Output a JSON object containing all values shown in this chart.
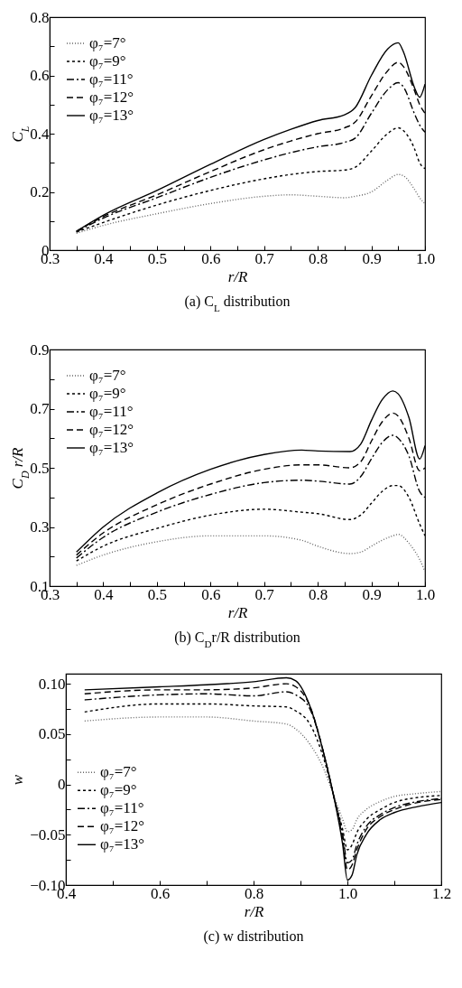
{
  "chart_data": [
    {
      "type": "line",
      "title": "(a) C$_{L}$ distribution",
      "xlabel": "r/R",
      "ylabel": "C$_{L}$",
      "legend": "top left",
      "xlim": [
        0.3,
        1.0
      ],
      "ylim": [
        0,
        0.8
      ],
      "xticks": [
        0.3,
        {
          "value": 0.35,
          "label": null
        },
        0.4,
        {
          "value": 0.45,
          "label": null
        },
        0.5,
        {
          "value": 0.55,
          "label": null
        },
        0.6,
        {
          "value": 0.65,
          "label": null
        },
        0.7,
        {
          "value": 0.75,
          "label": null
        },
        0.8,
        {
          "value": 0.85,
          "label": null
        },
        0.9,
        {
          "value": 0.95,
          "label": null
        },
        {
          "value": 1.0,
          "label": "1.0"
        }
      ],
      "yticks": [
        0,
        {
          "value": 0.1,
          "label": null
        },
        0.2,
        {
          "value": 0.3,
          "label": null
        },
        0.4,
        {
          "value": 0.5,
          "label": null
        },
        0.6,
        {
          "value": 0.7,
          "label": null
        },
        0.8
      ],
      "x": [
        0.35,
        0.4,
        0.5,
        0.6,
        0.7,
        0.75,
        0.8,
        0.85,
        0.87,
        0.9,
        0.93,
        0.95,
        0.96,
        0.98,
        0.99,
        1.0
      ],
      "series": [
        {
          "name": "φ₇=7°",
          "color": "#666666",
          "line_style": "dotted",
          "values": [
            0.058,
            0.085,
            0.125,
            0.16,
            0.185,
            0.19,
            0.185,
            0.18,
            0.185,
            0.2,
            0.24,
            0.26,
            0.255,
            0.21,
            0.18,
            0.16
          ]
        },
        {
          "name": "φ₇=9°",
          "color": "#000000",
          "line_style": "short-dashed",
          "values": [
            0.062,
            0.095,
            0.155,
            0.205,
            0.245,
            0.26,
            0.27,
            0.275,
            0.285,
            0.34,
            0.4,
            0.42,
            0.41,
            0.35,
            0.3,
            0.28
          ]
        },
        {
          "name": "φ₇=11°",
          "color": "#000000",
          "line_style": "dashdot",
          "values": [
            0.063,
            0.11,
            0.18,
            0.25,
            0.31,
            0.335,
            0.355,
            0.37,
            0.385,
            0.47,
            0.55,
            0.575,
            0.56,
            0.47,
            0.43,
            0.405
          ]
        },
        {
          "name": "φ₇=12°",
          "color": "#000000",
          "line_style": "dashed",
          "values": [
            0.065,
            0.115,
            0.19,
            0.27,
            0.345,
            0.375,
            0.4,
            0.42,
            0.44,
            0.53,
            0.615,
            0.645,
            0.63,
            0.55,
            0.5,
            0.47
          ]
        },
        {
          "name": "φ₇=13°",
          "color": "#000000",
          "line_style": "solid",
          "values": [
            0.065,
            0.12,
            0.205,
            0.295,
            0.38,
            0.415,
            0.445,
            0.465,
            0.49,
            0.6,
            0.69,
            0.712,
            0.68,
            0.56,
            0.525,
            0.57
          ]
        }
      ]
    },
    {
      "type": "line",
      "title": "(b) C$_{D}$r/R distribution",
      "xlabel": "r/R",
      "ylabel": "C$_{D}$ r/R",
      "legend": "top left",
      "xlim": [
        0.3,
        1.0
      ],
      "ylim": [
        0.1,
        0.9
      ],
      "xticks": [
        0.3,
        {
          "value": 0.35,
          "label": null
        },
        0.4,
        {
          "value": 0.45,
          "label": null
        },
        0.5,
        {
          "value": 0.55,
          "label": null
        },
        0.6,
        {
          "value": 0.65,
          "label": null
        },
        0.7,
        {
          "value": 0.75,
          "label": null
        },
        0.8,
        {
          "value": 0.85,
          "label": null
        },
        0.9,
        {
          "value": 0.95,
          "label": null
        },
        {
          "value": 1.0,
          "label": "1.0"
        }
      ],
      "yticks": [
        0.1,
        {
          "value": 0.2,
          "label": null
        },
        0.3,
        {
          "value": 0.4,
          "label": null
        },
        0.5,
        {
          "value": 0.6,
          "label": null
        },
        0.7,
        {
          "value": 0.8,
          "label": null
        },
        0.9
      ],
      "x": [
        0.35,
        0.4,
        0.5,
        0.6,
        0.7,
        0.77,
        0.8,
        0.86,
        0.88,
        0.9,
        0.92,
        0.94,
        0.95,
        0.97,
        0.99,
        1.0
      ],
      "series": [
        {
          "name": "φ₇=7°",
          "color": "#666666",
          "line_style": "dotted",
          "values": [
            0.17,
            0.205,
            0.25,
            0.27,
            0.27,
            0.255,
            0.235,
            0.21,
            0.215,
            0.235,
            0.255,
            0.27,
            0.275,
            0.245,
            0.19,
            0.15
          ]
        },
        {
          "name": "φ₇=9°",
          "color": "#000000",
          "line_style": "short-dashed",
          "values": [
            0.185,
            0.235,
            0.295,
            0.34,
            0.36,
            0.35,
            0.345,
            0.325,
            0.34,
            0.38,
            0.42,
            0.44,
            0.44,
            0.4,
            0.31,
            0.27
          ]
        },
        {
          "name": "φ₇=11°",
          "color": "#000000",
          "line_style": "dashdot",
          "values": [
            0.195,
            0.265,
            0.35,
            0.41,
            0.45,
            0.458,
            0.455,
            0.445,
            0.47,
            0.53,
            0.585,
            0.61,
            0.6,
            0.54,
            0.42,
            0.4
          ]
        },
        {
          "name": "φ₇=12°",
          "color": "#000000",
          "line_style": "dashed",
          "values": [
            0.205,
            0.28,
            0.375,
            0.445,
            0.495,
            0.51,
            0.51,
            0.5,
            0.52,
            0.59,
            0.655,
            0.685,
            0.675,
            0.6,
            0.49,
            0.5
          ]
        },
        {
          "name": "φ₇=13°",
          "color": "#000000",
          "line_style": "solid",
          "values": [
            0.215,
            0.3,
            0.415,
            0.495,
            0.545,
            0.56,
            0.557,
            0.555,
            0.58,
            0.66,
            0.73,
            0.76,
            0.75,
            0.67,
            0.53,
            0.575
          ]
        }
      ]
    },
    {
      "type": "line",
      "title": "(c) w distribution",
      "xlabel": "r/R",
      "ylabel": "w",
      "legend": "left",
      "xlim": [
        0.4,
        1.2
      ],
      "ylim": [
        -0.1,
        0.11
      ],
      "xticks": [
        0.4,
        {
          "value": 0.5,
          "label": null
        },
        0.6,
        {
          "value": 0.7,
          "label": null
        },
        0.8,
        {
          "value": 0.9,
          "label": null
        },
        {
          "value": 1.0,
          "label": "1.0"
        },
        {
          "value": 1.1,
          "label": null
        },
        1.2
      ],
      "yticks": [
        {
          "value": -0.1,
          "label": "−0.10"
        },
        {
          "value": -0.075,
          "label": null
        },
        {
          "value": -0.05,
          "label": "−0.05"
        },
        {
          "value": -0.025,
          "label": null
        },
        0,
        {
          "value": 0.025,
          "label": null
        },
        0.05,
        {
          "value": 0.075,
          "label": null
        },
        {
          "value": 0.1,
          "label": "0.10"
        }
      ],
      "x": [
        0.44,
        0.6,
        0.7,
        0.8,
        0.87,
        0.89,
        0.92,
        0.95,
        0.97,
        0.99,
        1.0,
        1.01,
        1.02,
        1.04,
        1.07,
        1.1,
        1.15,
        1.2
      ],
      "series": [
        {
          "name": "φ₇=7°",
          "color": "#666666",
          "line_style": "dotted",
          "values": [
            0.063,
            0.067,
            0.067,
            0.063,
            0.06,
            0.055,
            0.04,
            0.015,
            -0.01,
            -0.035,
            -0.047,
            -0.045,
            -0.035,
            -0.025,
            -0.017,
            -0.012,
            -0.009,
            -0.007
          ]
        },
        {
          "name": "φ₇=9°",
          "color": "#000000",
          "line_style": "short-dashed",
          "values": [
            0.072,
            0.08,
            0.08,
            0.078,
            0.077,
            0.073,
            0.06,
            0.025,
            -0.01,
            -0.045,
            -0.065,
            -0.06,
            -0.048,
            -0.035,
            -0.025,
            -0.018,
            -0.013,
            -0.011
          ]
        },
        {
          "name": "φ₇=11°",
          "color": "#000000",
          "line_style": "dashdot",
          "values": [
            0.084,
            0.089,
            0.09,
            0.088,
            0.092,
            0.089,
            0.075,
            0.03,
            -0.01,
            -0.05,
            -0.078,
            -0.075,
            -0.06,
            -0.042,
            -0.03,
            -0.023,
            -0.017,
            -0.014
          ]
        },
        {
          "name": "φ₇=12°",
          "color": "#000000",
          "line_style": "dashed",
          "values": [
            0.09,
            0.094,
            0.094,
            0.096,
            0.1,
            0.097,
            0.078,
            0.03,
            -0.01,
            -0.055,
            -0.085,
            -0.08,
            -0.065,
            -0.045,
            -0.032,
            -0.025,
            -0.018,
            -0.015
          ]
        },
        {
          "name": "φ₇=13°",
          "color": "#000000",
          "line_style": "solid",
          "values": [
            0.094,
            0.097,
            0.099,
            0.102,
            0.106,
            0.103,
            0.078,
            0.03,
            -0.01,
            -0.06,
            -0.095,
            -0.09,
            -0.07,
            -0.05,
            -0.035,
            -0.028,
            -0.022,
            -0.018
          ]
        }
      ]
    }
  ]
}
